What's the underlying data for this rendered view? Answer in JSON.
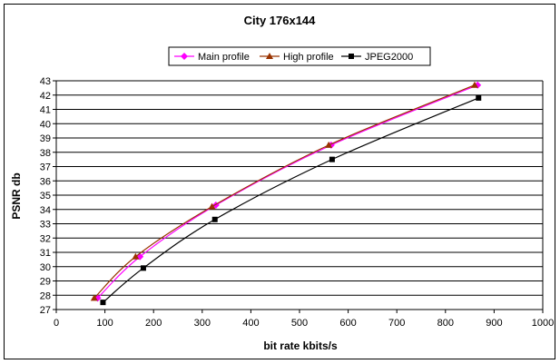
{
  "chart_data": {
    "type": "line",
    "title": "City 176x144",
    "xlabel": "bit rate kbits/s",
    "ylabel": "PSNR db",
    "xlim": [
      0,
      1000
    ],
    "ylim": [
      27,
      43
    ],
    "x_ticks": [
      0,
      100,
      200,
      300,
      400,
      500,
      600,
      700,
      800,
      900,
      1000
    ],
    "y_ticks": [
      27,
      28,
      29,
      30,
      31,
      32,
      33,
      34,
      35,
      36,
      37,
      38,
      39,
      40,
      41,
      42,
      43
    ],
    "grid": "horizontal",
    "legend_position": "top",
    "series": [
      {
        "name": "Main profile",
        "color": "#FF00FF",
        "marker": "diamond",
        "points": [
          [
            85,
            27.8
          ],
          [
            172,
            30.7
          ],
          [
            328,
            34.3
          ],
          [
            565,
            38.5
          ],
          [
            866,
            42.7
          ]
        ]
      },
      {
        "name": "High profile",
        "color": "#993300",
        "marker": "triangle",
        "points": [
          [
            78,
            27.8
          ],
          [
            163,
            30.7
          ],
          [
            320,
            34.2
          ],
          [
            560,
            38.5
          ],
          [
            860,
            42.7
          ]
        ]
      },
      {
        "name": "JPEG2000",
        "color": "#000000",
        "marker": "square",
        "points": [
          [
            96,
            27.5
          ],
          [
            179,
            29.9
          ],
          [
            326,
            33.3
          ],
          [
            567,
            37.5
          ],
          [
            868,
            41.8
          ]
        ]
      }
    ]
  }
}
